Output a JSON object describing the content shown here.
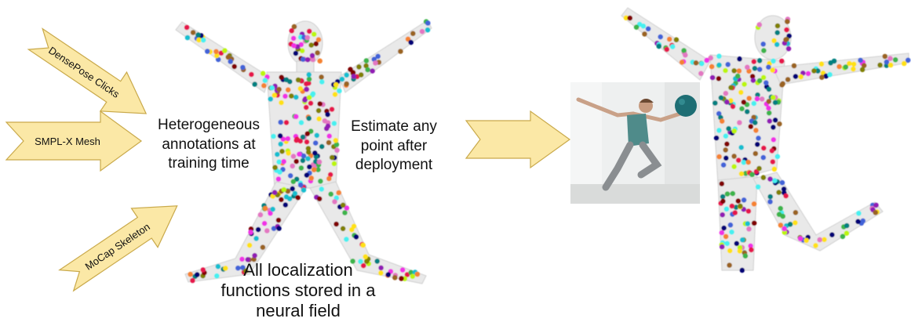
{
  "annotation_sources": [
    {
      "label": "DensePose Clicks"
    },
    {
      "label": "SMPL-X Mesh"
    },
    {
      "label": "MoCap Skeleton"
    }
  ],
  "captions": {
    "heterogeneous": "Heterogeneous\nannotations at\ntraining time",
    "estimate": "Estimate any\npoint after\ndeployment",
    "neural_field": "All localization\nfunctions stored in a\nneural field"
  },
  "colors": {
    "arrow_fill": "#fbe8a6",
    "arrow_stroke": "#c9a94a",
    "point_palette": [
      "#e6194b",
      "#3cb44b",
      "#4363d8",
      "#f58231",
      "#911eb4",
      "#46f0f0",
      "#f032e6",
      "#bcf60c",
      "#008080",
      "#9a6324",
      "#800000",
      "#808000",
      "#000075",
      "#ffe119",
      "#e377c2",
      "#17becf"
    ]
  },
  "icons": {
    "photo": "woman-leaping-with-exercise-ball"
  }
}
